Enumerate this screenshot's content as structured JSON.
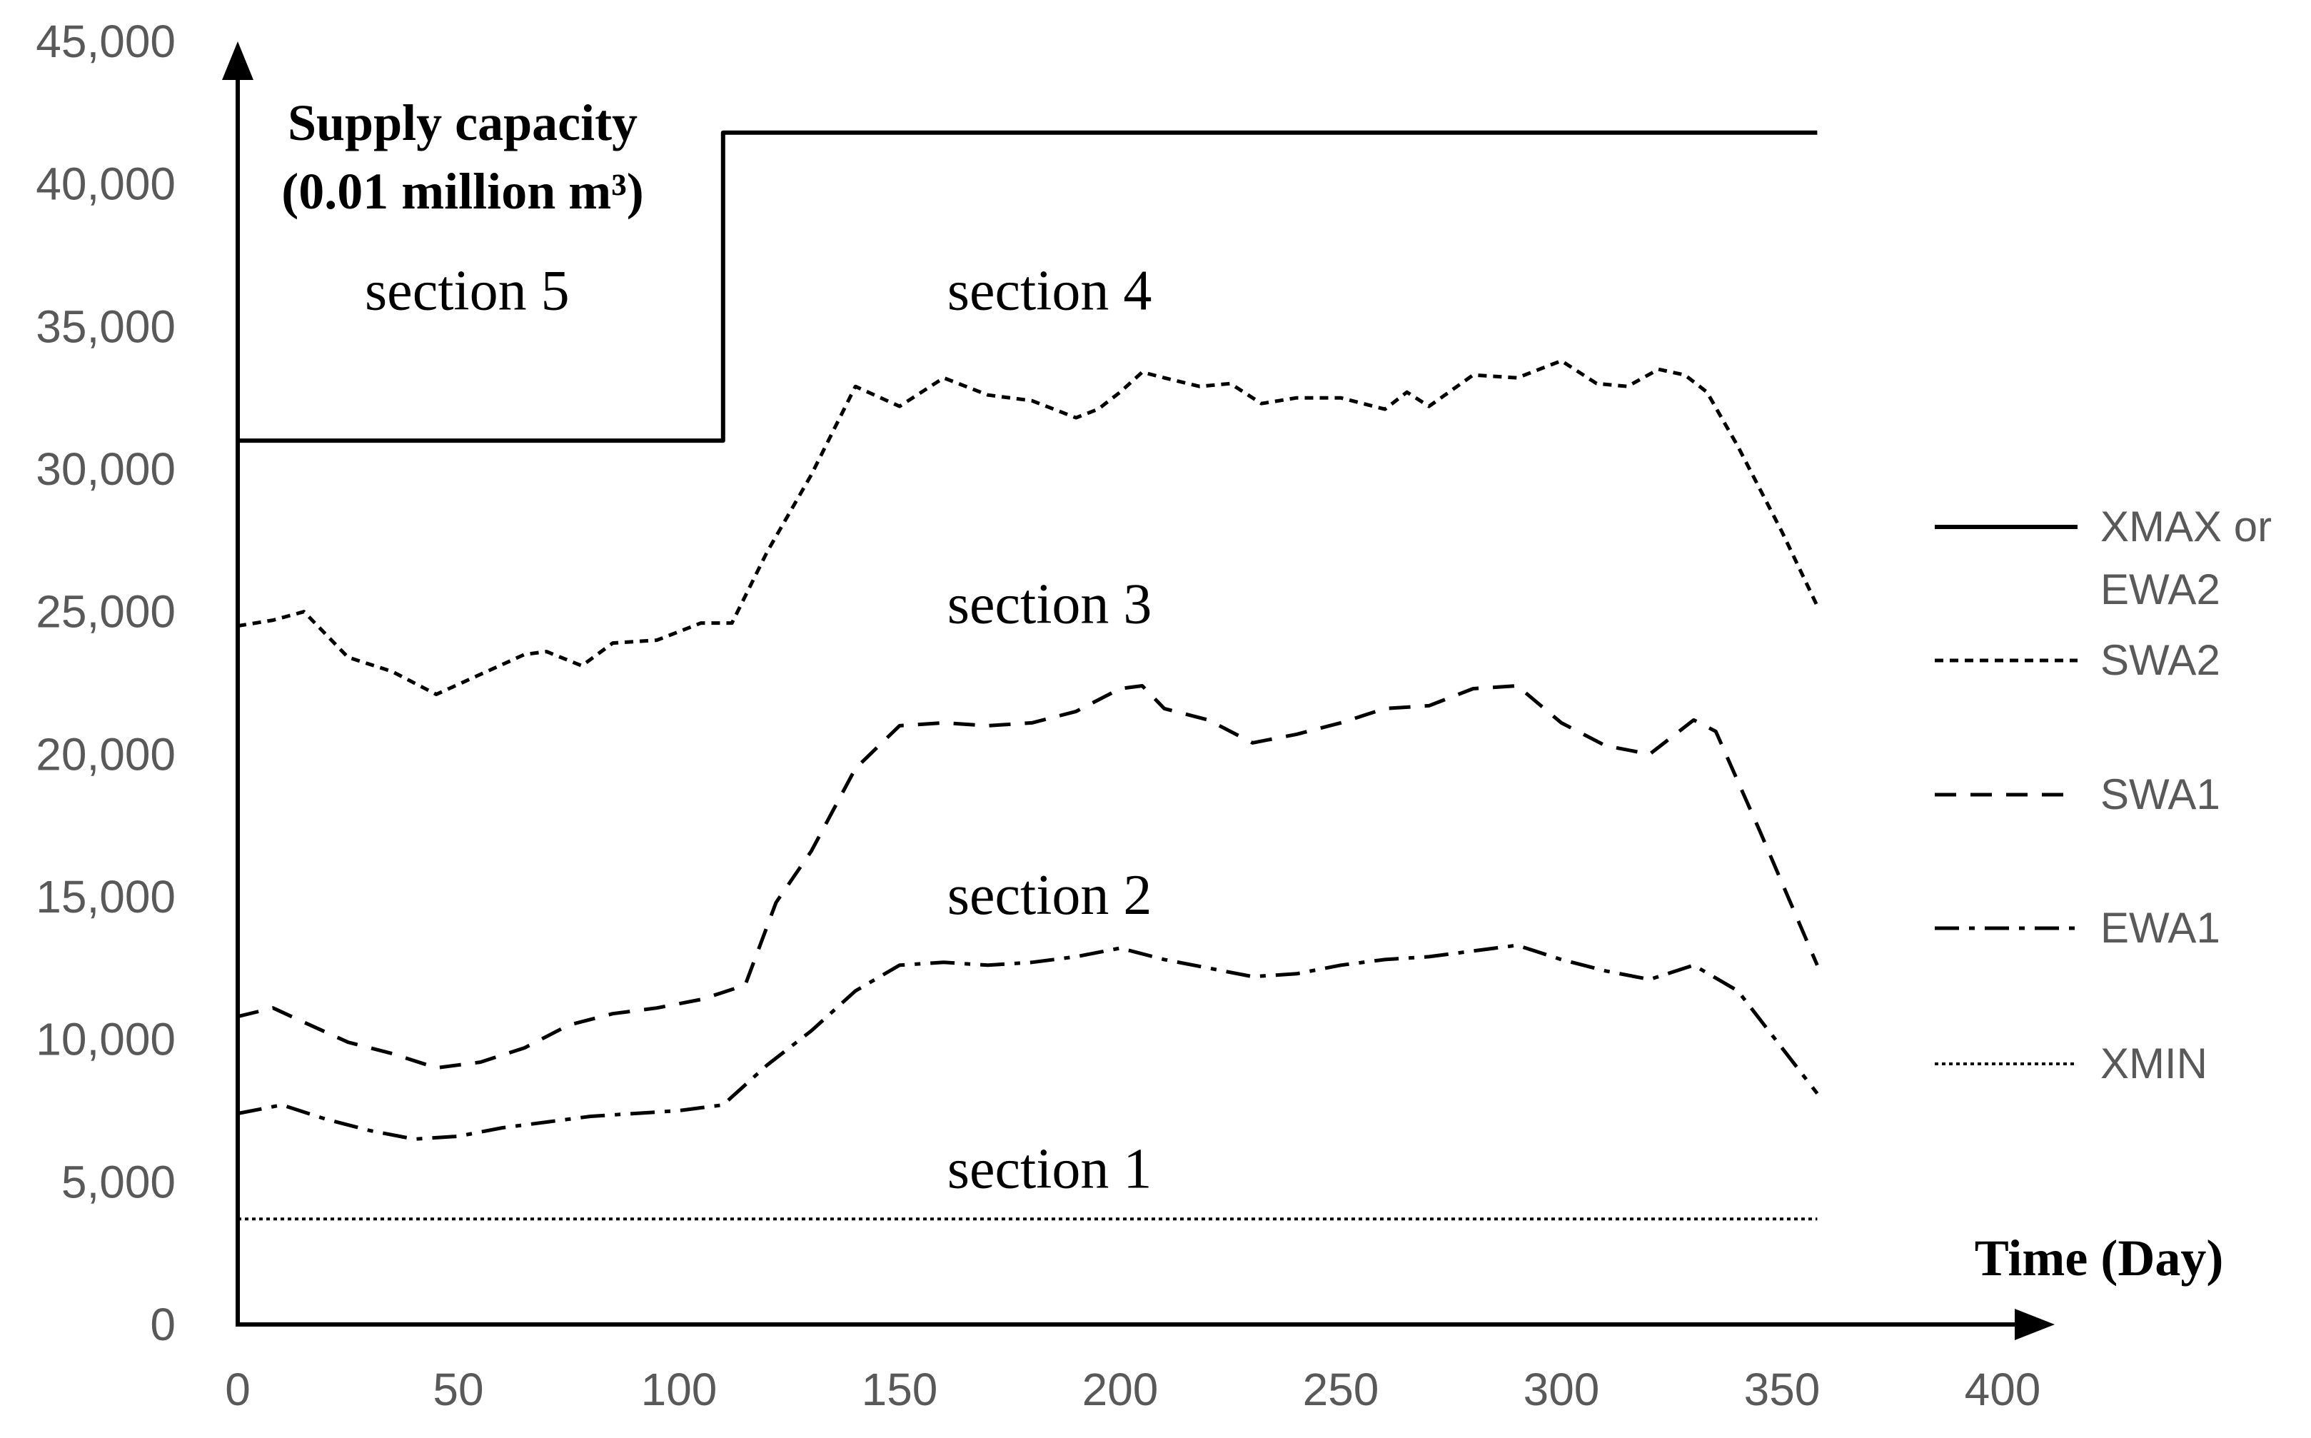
{
  "chart_data": {
    "type": "line",
    "ylabel_lines": [
      "Supply capacity",
      "(0.01 million m³)"
    ],
    "xlabel": "Time (Day)",
    "xlim": [
      0,
      400
    ],
    "ylim": [
      0,
      45000
    ],
    "x_ticks": [
      0,
      50,
      100,
      150,
      200,
      250,
      300,
      350,
      400
    ],
    "y_ticks": [
      0,
      5000,
      10000,
      15000,
      20000,
      25000,
      30000,
      35000,
      40000,
      45000
    ],
    "x_tick_labels": [
      "0",
      "50",
      "100",
      "150",
      "200",
      "250",
      "300",
      "350",
      "400"
    ],
    "y_tick_labels": [
      "0",
      "5,000",
      "10,000",
      "15,000",
      "20,000",
      "25,000",
      "30,000",
      "35,000",
      "40,000",
      "45,000"
    ],
    "annotations": [
      {
        "text": "section 5",
        "x": 52,
        "y": 36300
      },
      {
        "text": "section 4",
        "x": 184,
        "y": 36300
      },
      {
        "text": "section 3",
        "x": 184,
        "y": 25300
      },
      {
        "text": "section 2",
        "x": 184,
        "y": 15100
      },
      {
        "text": "section 1",
        "x": 184,
        "y": 5500
      }
    ],
    "legend_position": "right",
    "series": [
      {
        "name": "XMAX or EWA2",
        "line_style": "solid",
        "x": [
          0,
          110,
          110,
          358
        ],
        "y": [
          31000,
          31000,
          41800,
          41800
        ]
      },
      {
        "name": "SWA2",
        "line_style": "dotted-dash",
        "x": [
          0,
          8,
          15,
          25,
          35,
          45,
          55,
          65,
          70,
          78,
          85,
          95,
          105,
          112,
          120,
          130,
          140,
          150,
          160,
          170,
          180,
          190,
          195,
          200,
          205,
          210,
          218,
          225,
          232,
          240,
          250,
          260,
          265,
          270,
          280,
          290,
          300,
          308,
          315,
          322,
          328,
          333,
          340,
          350,
          358
        ],
        "y": [
          24500,
          24700,
          25000,
          23400,
          22900,
          22100,
          22800,
          23500,
          23600,
          23100,
          23900,
          24000,
          24600,
          24600,
          27100,
          29800,
          32900,
          32200,
          33200,
          32600,
          32400,
          31800,
          32100,
          32700,
          33400,
          33200,
          32900,
          33000,
          32300,
          32500,
          32500,
          32100,
          32700,
          32200,
          33300,
          33200,
          33800,
          33000,
          32900,
          33500,
          33300,
          32700,
          30800,
          27800,
          25200
        ]
      },
      {
        "name": "SWA1",
        "line_style": "dashed",
        "x": [
          0,
          8,
          15,
          25,
          35,
          45,
          55,
          65,
          75,
          85,
          95,
          105,
          115,
          122,
          130,
          140,
          150,
          160,
          170,
          180,
          190,
          200,
          205,
          210,
          220,
          230,
          240,
          250,
          260,
          270,
          280,
          290,
          300,
          310,
          320,
          330,
          335,
          345,
          358
        ],
        "y": [
          10800,
          11100,
          10600,
          9900,
          9500,
          9000,
          9200,
          9700,
          10500,
          10900,
          11100,
          11400,
          11900,
          14800,
          16600,
          19500,
          21000,
          21100,
          21000,
          21100,
          21500,
          22300,
          22400,
          21600,
          21200,
          20400,
          20700,
          21100,
          21600,
          21700,
          22300,
          22400,
          21100,
          20300,
          20000,
          21200,
          20800,
          17300,
          12600
        ]
      },
      {
        "name": "EWA1",
        "line_style": "dash-dot",
        "x": [
          0,
          10,
          20,
          30,
          40,
          50,
          60,
          70,
          80,
          90,
          100,
          110,
          120,
          130,
          140,
          150,
          160,
          170,
          180,
          190,
          200,
          210,
          220,
          230,
          240,
          250,
          260,
          270,
          280,
          290,
          300,
          310,
          320,
          330,
          340,
          358
        ],
        "y": [
          7400,
          7700,
          7200,
          6800,
          6500,
          6600,
          6900,
          7100,
          7300,
          7400,
          7500,
          7700,
          9100,
          10300,
          11700,
          12600,
          12700,
          12600,
          12700,
          12900,
          13200,
          12800,
          12500,
          12200,
          12300,
          12600,
          12800,
          12900,
          13100,
          13300,
          12800,
          12400,
          12100,
          12600,
          11700,
          8100
        ]
      },
      {
        "name": "XMIN",
        "line_style": "dotted",
        "x": [
          0,
          358
        ],
        "y": [
          3700,
          3700
        ]
      }
    ],
    "colors": {
      "lines": "#000000",
      "tick_labels": "#595959"
    }
  }
}
